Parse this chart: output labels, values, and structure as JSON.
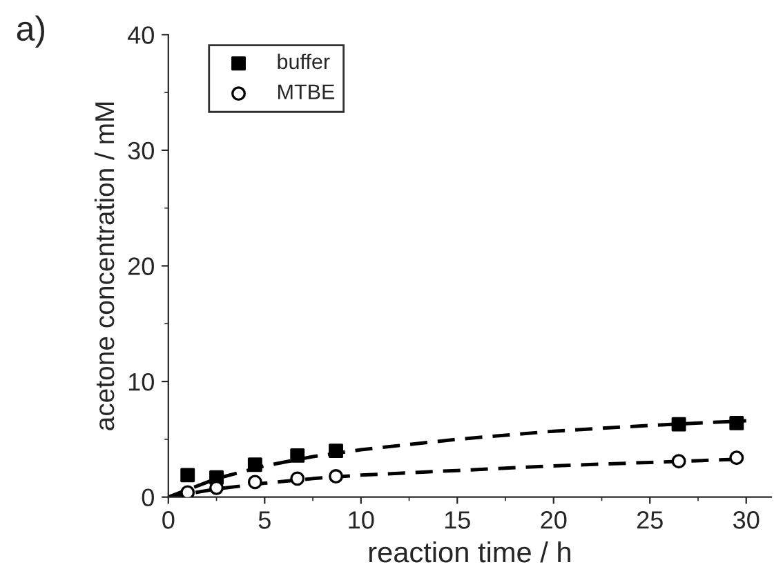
{
  "chart_data": {
    "type": "scatter",
    "xlabel": "reaction time / h",
    "ylabel": "acetone concentration / mM",
    "annotations": [
      "a)"
    ],
    "series": [
      {
        "name": "buffer",
        "color": "#000000",
        "marker": "square",
        "x": [
          1,
          2.5,
          4.5,
          6.7,
          8.7,
          26.5,
          29.5
        ],
        "values": [
          1.9,
          1.7,
          2.8,
          3.6,
          4.0,
          6.3,
          6.4
        ]
      },
      {
        "name": "MTBE",
        "color": "#000000",
        "marker": "circle",
        "x": [
          1,
          2.5,
          4.5,
          6.7,
          8.7,
          26.5,
          29.5
        ],
        "values": [
          0.4,
          0.8,
          1.3,
          1.6,
          1.8,
          3.1,
          3.4
        ]
      },
      {
        "type": "line",
        "color": "#000000",
        "line_style": "dashed",
        "x": [
          0,
          2.5,
          5,
          7.5,
          10,
          15,
          20,
          25,
          30
        ],
        "values": [
          0,
          1.6,
          2.7,
          3.5,
          4.1,
          5.0,
          5.7,
          6.2,
          6.6
        ]
      },
      {
        "type": "line",
        "color": "#000000",
        "line_style": "dashed",
        "x": [
          0,
          2.5,
          5,
          7.5,
          10,
          15,
          20,
          25,
          30
        ],
        "values": [
          0,
          0.7,
          1.2,
          1.6,
          1.9,
          2.3,
          2.7,
          3.0,
          3.3
        ]
      }
    ],
    "xlim": [
      0,
      31.3
    ],
    "ylim": [
      0,
      40
    ],
    "xticks": [
      0,
      5,
      10,
      15,
      20,
      25,
      30
    ],
    "yticks": [
      0,
      10,
      20,
      30,
      40
    ],
    "grid": false,
    "legend": "top left"
  }
}
